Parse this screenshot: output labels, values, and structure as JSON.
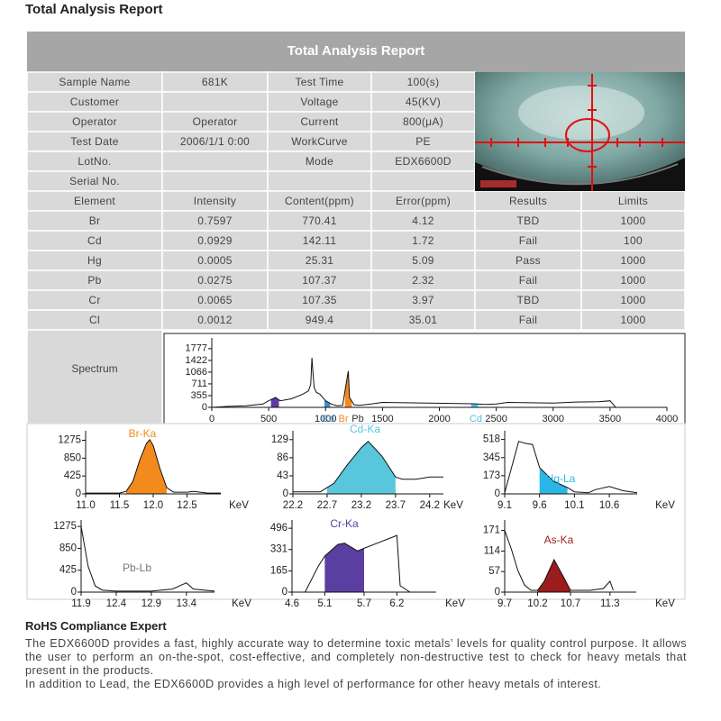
{
  "header": {
    "title": "Total Analysis Report"
  },
  "report": {
    "title": "Total Analysis Report",
    "info_rows": [
      [
        "Sample Name",
        "681K",
        "Test Time",
        "100(s)"
      ],
      [
        "Customer",
        null,
        "Voltage",
        "45(KV)"
      ],
      [
        "Operator",
        "Operator",
        "Current",
        "800(μA)"
      ],
      [
        "Test Date",
        "2006/1/1 0:00",
        "WorkCurve",
        "PE"
      ],
      [
        "LotNo.",
        null,
        "Mode",
        "EDX6600D"
      ],
      [
        "Serial No.",
        null,
        null,
        null
      ]
    ],
    "element_header": [
      "Element",
      "Intensity",
      "Content(ppm)",
      "Error(ppm)",
      "Results",
      "Limits"
    ],
    "element_rows": [
      [
        "Br",
        0.7597,
        770.41,
        4.12,
        "TBD",
        1000
      ],
      [
        "Cd",
        0.0929,
        142.11,
        1.72,
        "Fail",
        100
      ],
      [
        "Hg",
        0.0005,
        25.31,
        5.09,
        "Pass",
        1000
      ],
      [
        "Pb",
        0.0275,
        107.37,
        2.32,
        "Fail",
        1000
      ],
      [
        "Cr",
        0.0065,
        107.35,
        3.97,
        "TBD",
        1000
      ],
      [
        "Cl",
        0.0012,
        949.4,
        35.01,
        "Fail",
        1000
      ]
    ],
    "spectrum_label": "Spectrum"
  },
  "spectrum": {
    "type": "line",
    "xlim": [
      0,
      4000
    ],
    "ylim": [
      0,
      2100
    ],
    "xticks": [
      0,
      500,
      1000,
      1500,
      2000,
      2500,
      3000,
      3500,
      4000
    ],
    "yticks": [
      0,
      355,
      711,
      1066,
      1422,
      1777
    ],
    "x": [
      0,
      150,
      300,
      450,
      500,
      560,
      600,
      700,
      800,
      850,
      870,
      880,
      890,
      900,
      920,
      950,
      1000,
      1050,
      1100,
      1150,
      1190,
      1200,
      1210,
      1250,
      1300,
      1400,
      1500,
      1700,
      1900,
      2100,
      2300,
      2400,
      2500,
      2600,
      2800,
      3000,
      3200,
      3400,
      3500,
      3550,
      4000
    ],
    "values": [
      0,
      30,
      50,
      100,
      200,
      300,
      200,
      260,
      400,
      500,
      700,
      1500,
      1000,
      600,
      450,
      400,
      200,
      100,
      50,
      60,
      900,
      1100,
      300,
      80,
      60,
      100,
      150,
      140,
      130,
      120,
      110,
      90,
      100,
      150,
      140,
      130,
      160,
      170,
      200,
      0,
      0
    ],
    "fills": [
      {
        "color": "#5b3fa0",
        "from": 520,
        "to": 590
      },
      {
        "color": "#3a8fd6",
        "from": 990,
        "to": 1040
      },
      {
        "color": "#f28a1e",
        "from": 1170,
        "to": 1230
      },
      {
        "color": "#4ec3e0",
        "from": 2280,
        "to": 2340
      }
    ],
    "labels": [
      {
        "text": "Cd",
        "color": "#3a8fd6"
      },
      {
        "text": "Br",
        "color": "#f28a1e"
      },
      {
        "text": "Pb",
        "color": "#333333"
      },
      {
        "text": "Cd",
        "color": "#4ec3e0"
      }
    ]
  },
  "peaks": [
    {
      "type": "line",
      "label": "Br-Ka",
      "color": "#f28a1e",
      "x_unit": "KeV",
      "xlim": [
        11.0,
        13.0
      ],
      "ylim": [
        0,
        1500
      ],
      "xticks": [
        {
          "value": 11,
          "label": "11.0"
        },
        11.5,
        {
          "value": 12,
          "label": "12.0"
        },
        12.5
      ],
      "yticks": [
        0,
        425,
        850,
        1275
      ],
      "fill": [
        11.6,
        12.2
      ],
      "x": [
        11.0,
        11.5,
        11.6,
        11.7,
        11.8,
        11.9,
        11.95,
        12.0,
        12.1,
        12.2,
        12.3,
        12.5,
        12.6,
        12.8,
        13.0
      ],
      "values": [
        20,
        20,
        60,
        300,
        800,
        1200,
        1290,
        1150,
        600,
        150,
        40,
        40,
        60,
        20,
        20
      ]
    },
    {
      "type": "line",
      "label": "Cd-Ka",
      "color": "#58c7dc",
      "x_unit": "KeV",
      "xlim": [
        22.2,
        24.4
      ],
      "ylim": [
        0,
        150
      ],
      "xticks": [
        22.2,
        22.7,
        23.2,
        23.7,
        24.2
      ],
      "yticks": [
        0,
        43,
        86,
        129
      ],
      "fill": [
        22.7,
        23.7
      ],
      "x": [
        22.2,
        22.6,
        22.8,
        23.0,
        23.2,
        23.3,
        23.5,
        23.7,
        23.8,
        24.0,
        24.2,
        24.4
      ],
      "values": [
        5,
        5,
        25,
        70,
        110,
        125,
        90,
        40,
        35,
        35,
        40,
        40
      ]
    },
    {
      "type": "line",
      "label": "Hg-La",
      "color": "#2cb6e3",
      "x_unit": "KeV",
      "xlim": [
        9.1,
        11.0
      ],
      "ylim": [
        0,
        600
      ],
      "xticks": [
        9.1,
        9.6,
        10.1,
        10.6
      ],
      "yticks": [
        0,
        173,
        345,
        518
      ],
      "fill": [
        9.6,
        10.0
      ],
      "x": [
        9.1,
        9.3,
        9.4,
        9.5,
        9.6,
        9.8,
        10.0,
        10.1,
        10.3,
        10.4,
        10.6,
        10.8,
        11.0
      ],
      "values": [
        10,
        500,
        480,
        470,
        250,
        120,
        60,
        20,
        10,
        40,
        70,
        30,
        10
      ]
    },
    {
      "type": "line",
      "label": "Pb-Lb",
      "color": "#777777",
      "x_unit": "KeV",
      "xlim": [
        11.9,
        13.8
      ],
      "ylim": [
        0,
        1400
      ],
      "xticks": [
        11.9,
        12.4,
        12.9,
        13.4
      ],
      "yticks": [
        0,
        425,
        850,
        1275
      ],
      "x": [
        11.9,
        12.0,
        12.1,
        12.2,
        12.4,
        12.7,
        12.9,
        13.2,
        13.4,
        13.5,
        13.8
      ],
      "values": [
        1275,
        500,
        120,
        40,
        20,
        20,
        20,
        60,
        180,
        60,
        20
      ]
    },
    {
      "type": "line",
      "label": "Cr-Ka",
      "color": "#5b3fa0",
      "x_unit": "KeV",
      "xlim": [
        4.6,
        6.8
      ],
      "ylim": [
        0,
        560
      ],
      "xticks": [
        4.6,
        5.1,
        5.7,
        6.2
      ],
      "yticks": [
        0,
        165,
        331,
        496
      ],
      "fill": [
        5.1,
        5.7
      ],
      "x": [
        4.6,
        4.8,
        5.0,
        5.1,
        5.3,
        5.4,
        5.6,
        5.7,
        5.9,
        6.1,
        6.2,
        6.25,
        6.4,
        6.8
      ],
      "values": [
        0,
        0,
        200,
        280,
        370,
        380,
        320,
        340,
        380,
        420,
        440,
        50,
        0,
        0
      ]
    },
    {
      "type": "line",
      "label": "As-Ka",
      "color": "#9b1c1c",
      "x_unit": "KeV",
      "xlim": [
        9.7,
        11.7
      ],
      "ylim": [
        0,
        200
      ],
      "xticks": [
        9.7,
        10.2,
        10.7,
        11.3
      ],
      "yticks": [
        0,
        57,
        114,
        171
      ],
      "fill": [
        10.2,
        10.7
      ],
      "x": [
        9.7,
        9.8,
        9.9,
        10.0,
        10.1,
        10.2,
        10.3,
        10.45,
        10.6,
        10.7,
        10.8,
        11.0,
        11.2,
        11.3,
        11.35
      ],
      "values": [
        171,
        120,
        60,
        20,
        5,
        5,
        30,
        90,
        40,
        5,
        5,
        5,
        10,
        30,
        5
      ]
    }
  ],
  "footer": {
    "title": "RoHS Compliance Expert",
    "paragraphs": [
      "The EDX6600D provides a fast, highly accurate way to determine toxic metals’ levels for quality control purpose. It allows the user to perform an on-the-spot, cost-effective, and completely non-destructive test to check for heavy metals that present in the products.",
      "In addition to Lead, the EDX6600D provides a high level of performance for other heavy metals of interest."
    ]
  }
}
